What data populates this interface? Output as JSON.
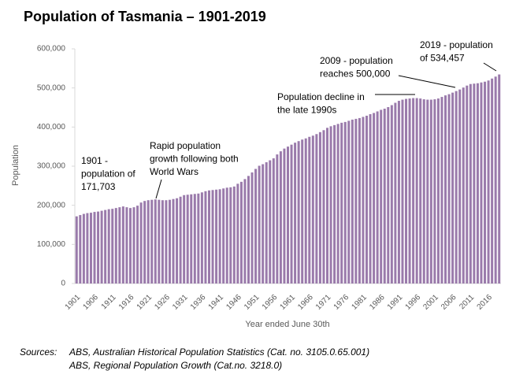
{
  "chart_data": {
    "type": "bar",
    "title": "Population of Tasmania – 1901-2019",
    "ylabel": "Population",
    "xlabel": "Year ended June 30th",
    "color": "#9a7aab",
    "categories": [
      "1901",
      null,
      null,
      null,
      null,
      "1906",
      null,
      null,
      null,
      null,
      "1911",
      null,
      null,
      null,
      null,
      "1916",
      null,
      null,
      null,
      null,
      "1921",
      null,
      null,
      null,
      null,
      "1926",
      null,
      null,
      null,
      null,
      "1931",
      null,
      null,
      null,
      null,
      "1936",
      null,
      null,
      null,
      null,
      "1941",
      null,
      null,
      null,
      null,
      "1946",
      null,
      null,
      null,
      null,
      "1951",
      null,
      null,
      null,
      null,
      "1956",
      null,
      null,
      null,
      null,
      "1961",
      null,
      null,
      null,
      null,
      "1966",
      null,
      null,
      null,
      null,
      "1971",
      null,
      null,
      null,
      null,
      "1976",
      null,
      null,
      null,
      null,
      "1981",
      null,
      null,
      null,
      null,
      "1986",
      null,
      null,
      null,
      null,
      "1991",
      null,
      null,
      null,
      null,
      "1996",
      null,
      null,
      null,
      null,
      "2001",
      null,
      null,
      null,
      null,
      "2006",
      null,
      null,
      null,
      null,
      "2011",
      null,
      null,
      null,
      null,
      "2016",
      null,
      null,
      null
    ],
    "values": [
      171703,
      175000,
      178000,
      180000,
      181000,
      183000,
      184000,
      186000,
      188000,
      190000,
      191000,
      193000,
      195000,
      197000,
      195000,
      193000,
      195000,
      199000,
      207000,
      211000,
      213000,
      214000,
      215000,
      214000,
      213000,
      213000,
      214000,
      216000,
      218000,
      222000,
      226000,
      227000,
      228000,
      229000,
      230000,
      233000,
      236000,
      238000,
      239000,
      240000,
      241000,
      243000,
      245000,
      246000,
      248000,
      255000,
      260000,
      267000,
      275000,
      284000,
      293000,
      301000,
      305000,
      310000,
      315000,
      320000,
      330000,
      338000,
      345000,
      350000,
      355000,
      360000,
      364000,
      368000,
      371000,
      375000,
      378000,
      382000,
      387000,
      392000,
      398000,
      402000,
      405000,
      408000,
      411000,
      413000,
      416000,
      419000,
      421000,
      423000,
      426000,
      429000,
      433000,
      436000,
      440000,
      444000,
      447000,
      451000,
      456000,
      462000,
      467000,
      470000,
      472000,
      473000,
      474000,
      474000,
      473000,
      471000,
      470000,
      470000,
      471000,
      473000,
      477000,
      481000,
      484000,
      488000,
      492000,
      496000,
      501000,
      506000,
      510000,
      511000,
      512000,
      514000,
      516000,
      519000,
      524000,
      529000,
      534457
    ],
    "ylim": [
      0,
      600000
    ],
    "yticks": [
      0,
      {
        "value": 100000,
        "label": "100,000"
      },
      {
        "value": 200000,
        "label": "200,000"
      },
      {
        "value": 300000,
        "label": "300,000"
      },
      {
        "value": 400000,
        "label": "400,000"
      },
      {
        "value": 500000,
        "label": "500,000"
      },
      {
        "value": 600000,
        "label": "600,000"
      }
    ],
    "annotations": [
      [
        "1901 -",
        "population of",
        "171,703"
      ],
      [
        "Rapid population",
        "growth following both",
        "World Wars"
      ],
      [
        "Population decline in",
        "the late 1990s"
      ],
      [
        "2009 - population",
        "reaches 500,000"
      ],
      [
        "2019 - population",
        "of 534,457"
      ]
    ],
    "sources_label": "Sources:",
    "sources": [
      "ABS, Australian Historical Population Statistics (Cat. no. 3105.0.65.001)",
      "ABS, Regional Population Growth (Cat.no. 3218.0)"
    ]
  }
}
